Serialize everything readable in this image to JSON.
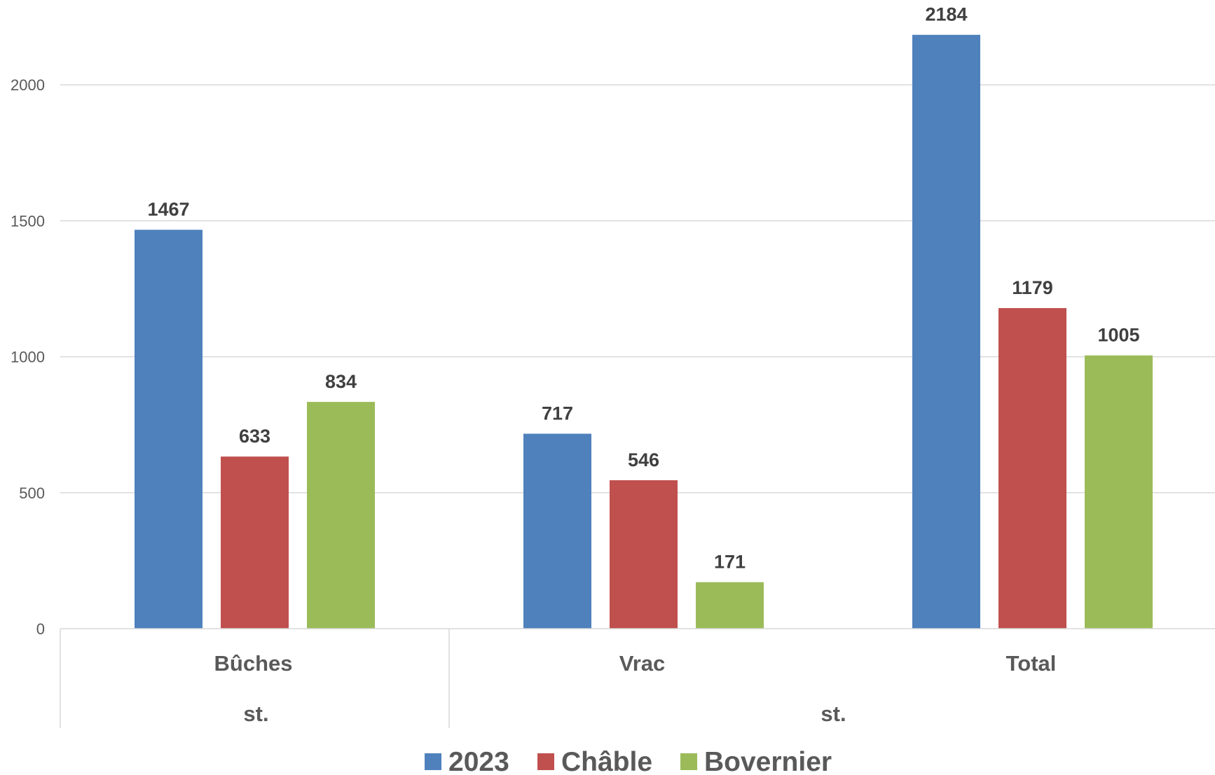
{
  "chart_data": {
    "type": "bar",
    "categories": [
      "Bûches",
      "Vrac",
      "Total"
    ],
    "group_labels": [
      "st.",
      "st."
    ],
    "series": [
      {
        "name": "2023",
        "color": "#4F81BD",
        "values": [
          1467,
          717,
          2184
        ]
      },
      {
        "name": "Châble",
        "color": "#C0504D",
        "values": [
          633,
          546,
          1179
        ]
      },
      {
        "name": "Bovernier",
        "color": "#9BBB59",
        "values": [
          834,
          171,
          1005
        ]
      }
    ],
    "yticks": [
      0,
      500,
      1000,
      1500,
      2000
    ],
    "ylim": [
      0,
      2200
    ],
    "grid": true,
    "legend": "bottom",
    "data_labels": true
  }
}
